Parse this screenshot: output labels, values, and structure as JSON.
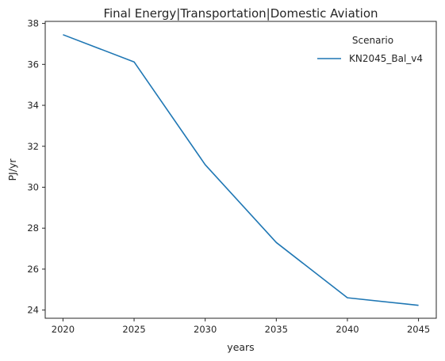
{
  "chart_data": {
    "type": "line",
    "title": "Final Energy|Transportation|Domestic Aviation",
    "xlabel": "years",
    "ylabel": "PJ/yr",
    "x": [
      2020,
      2025,
      2030,
      2035,
      2040,
      2045
    ],
    "series": [
      {
        "name": "KN2045_Bal_v4",
        "color": "#1f77b4",
        "values": [
          37.45,
          36.12,
          31.1,
          27.3,
          24.6,
          24.23
        ]
      }
    ],
    "xticks": [
      2020,
      2025,
      2030,
      2035,
      2040,
      2045
    ],
    "yticks": [
      24,
      26,
      28,
      30,
      32,
      34,
      36,
      38
    ],
    "xlim": [
      2018.75,
      2046.25
    ],
    "ylim": [
      23.6,
      38.1
    ],
    "legend": {
      "title": "Scenario",
      "position": "top-right"
    },
    "grid": false
  }
}
